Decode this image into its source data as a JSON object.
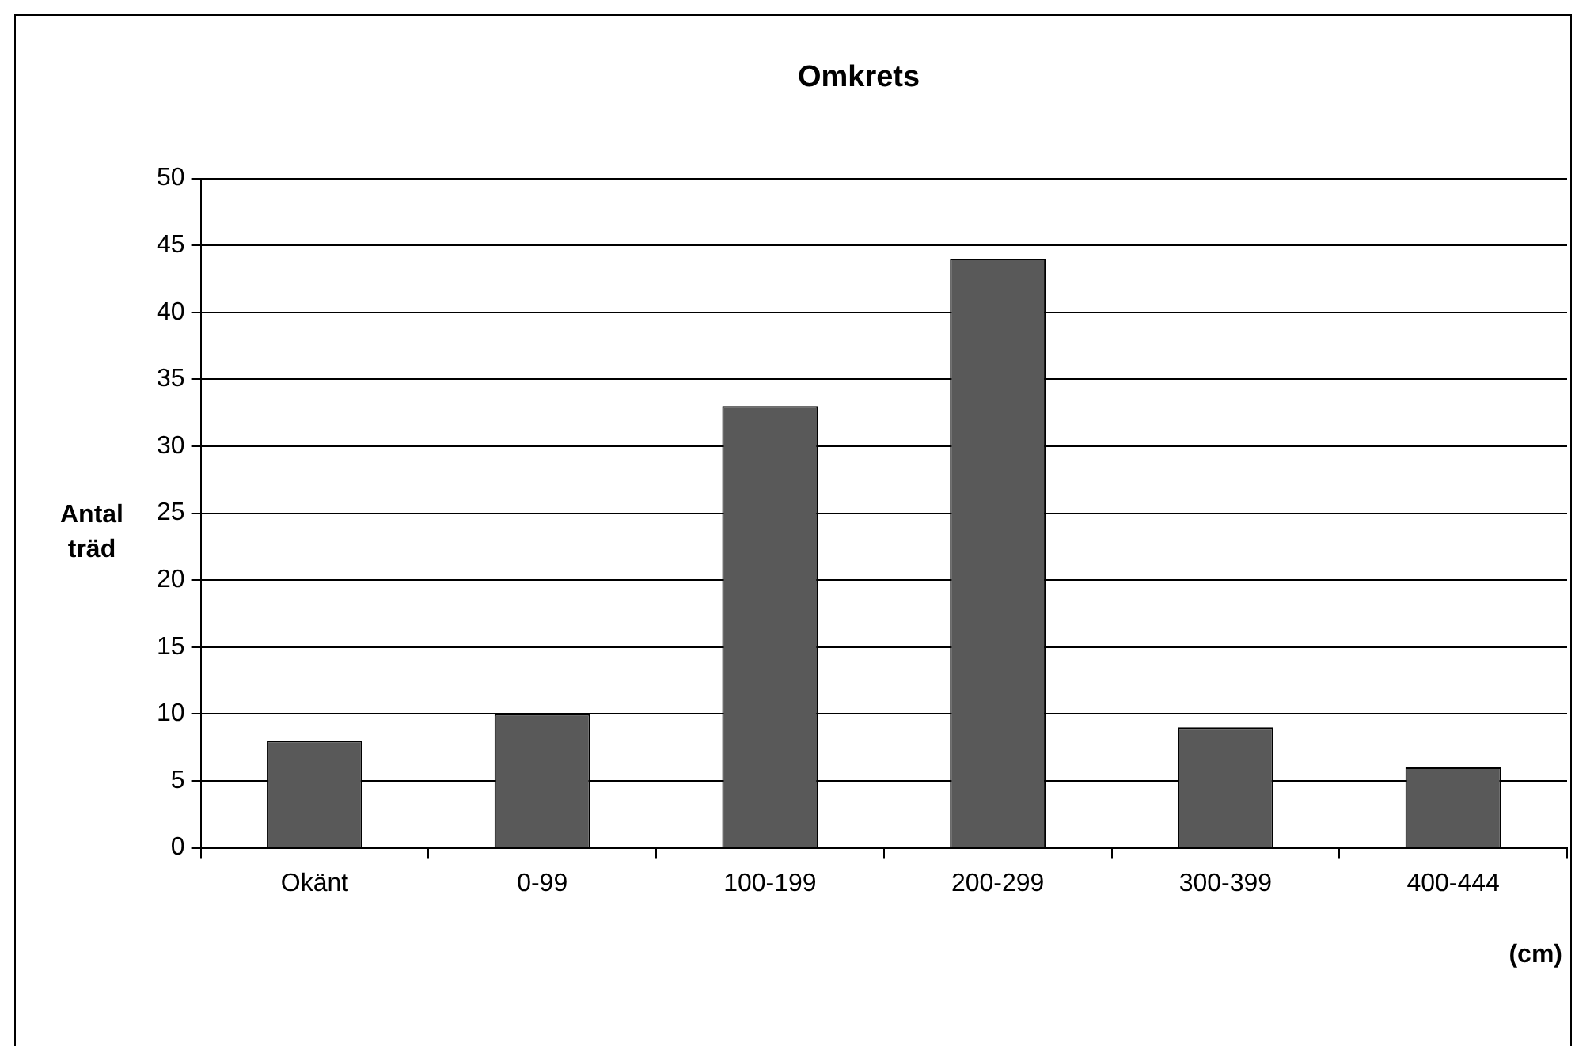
{
  "chart_data": {
    "type": "bar",
    "title": "Omkrets",
    "xlabel": "(cm)",
    "ylabel": "Antal träd",
    "categories": [
      "Okänt",
      "0-99",
      "100-199",
      "200-299",
      "300-399",
      "400-444"
    ],
    "values": [
      8,
      10,
      33,
      44,
      9,
      6
    ],
    "color": "#595959",
    "ylim": [
      0,
      50
    ],
    "yticks": [
      0,
      5,
      10,
      15,
      20,
      25,
      30,
      35,
      40,
      45,
      50
    ],
    "grid": "y",
    "legend": false
  }
}
